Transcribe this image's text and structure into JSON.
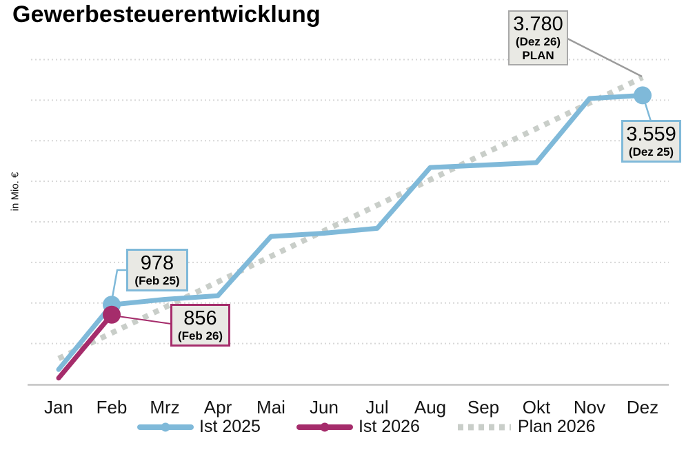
{
  "title": "Gewerbesteuerentwicklung",
  "y_axis_label": "in Mio. €",
  "chart_data": {
    "type": "line",
    "title": "Gewerbesteuerentwicklung",
    "xlabel": "",
    "ylabel": "in Mio. €",
    "categories": [
      "Jan",
      "Feb",
      "Mrz",
      "Apr",
      "Mai",
      "Jun",
      "Jul",
      "Aug",
      "Sep",
      "Okt",
      "Nov",
      "Dez"
    ],
    "ylim": [
      0,
      4200
    ],
    "gridline_values": [
      500,
      1000,
      1500,
      2000,
      2500,
      3000,
      3500,
      4000
    ],
    "grid": "horizontal dotted lines, y tick labels hidden",
    "legend_position": "bottom center",
    "series": [
      {
        "name": "Ist 2025",
        "color": "#7fb9d9",
        "style": "solid",
        "values": [
          180,
          978,
          1045,
          1090,
          1820,
          1860,
          1920,
          2670,
          2700,
          2730,
          3520,
          3559
        ],
        "labeled_points": [
          {
            "month": "Feb",
            "value": 978
          },
          {
            "month": "Dez",
            "value": 3559
          }
        ],
        "marker_indices": [
          1,
          11
        ]
      },
      {
        "name": "Ist 2026",
        "color": "#a52c6b",
        "style": "solid",
        "values": [
          75,
          856,
          null,
          null,
          null,
          null,
          null,
          null,
          null,
          null,
          null,
          null
        ],
        "labeled_points": [
          {
            "month": "Feb",
            "value": 856
          }
        ],
        "marker_indices": [
          1
        ]
      },
      {
        "name": "Plan 2026",
        "color": "#c9cec9",
        "style": "dotted",
        "values": [
          315,
          630,
          945,
          1260,
          1575,
          1890,
          2205,
          2520,
          2835,
          3150,
          3465,
          3780
        ],
        "labeled_points": [
          {
            "month": "Dez",
            "value": 3780
          }
        ],
        "marker_indices": []
      }
    ],
    "annotations": {
      "feb25": {
        "value": "978",
        "label": "(Feb 25)"
      },
      "feb26": {
        "value": "856",
        "label": "(Feb 26)"
      },
      "dez26": {
        "value": "3.780",
        "label": "(Dez 26)",
        "label2": "PLAN"
      },
      "dez25": {
        "value": "3.559",
        "label": "(Dez 25)"
      }
    }
  },
  "colors": {
    "ist_2025": "#7fb9d9",
    "ist_2026": "#a52c6b",
    "plan_2026": "#c9cec9",
    "gridline": "#d7d7d7",
    "axis_line": "#c3c3c3",
    "callout_fill": "#e9e9e4",
    "callout_border_gray": "#a8a8a8",
    "connector_gray": "#9b9b9b",
    "text": "#111111",
    "background": "#ffffff"
  }
}
